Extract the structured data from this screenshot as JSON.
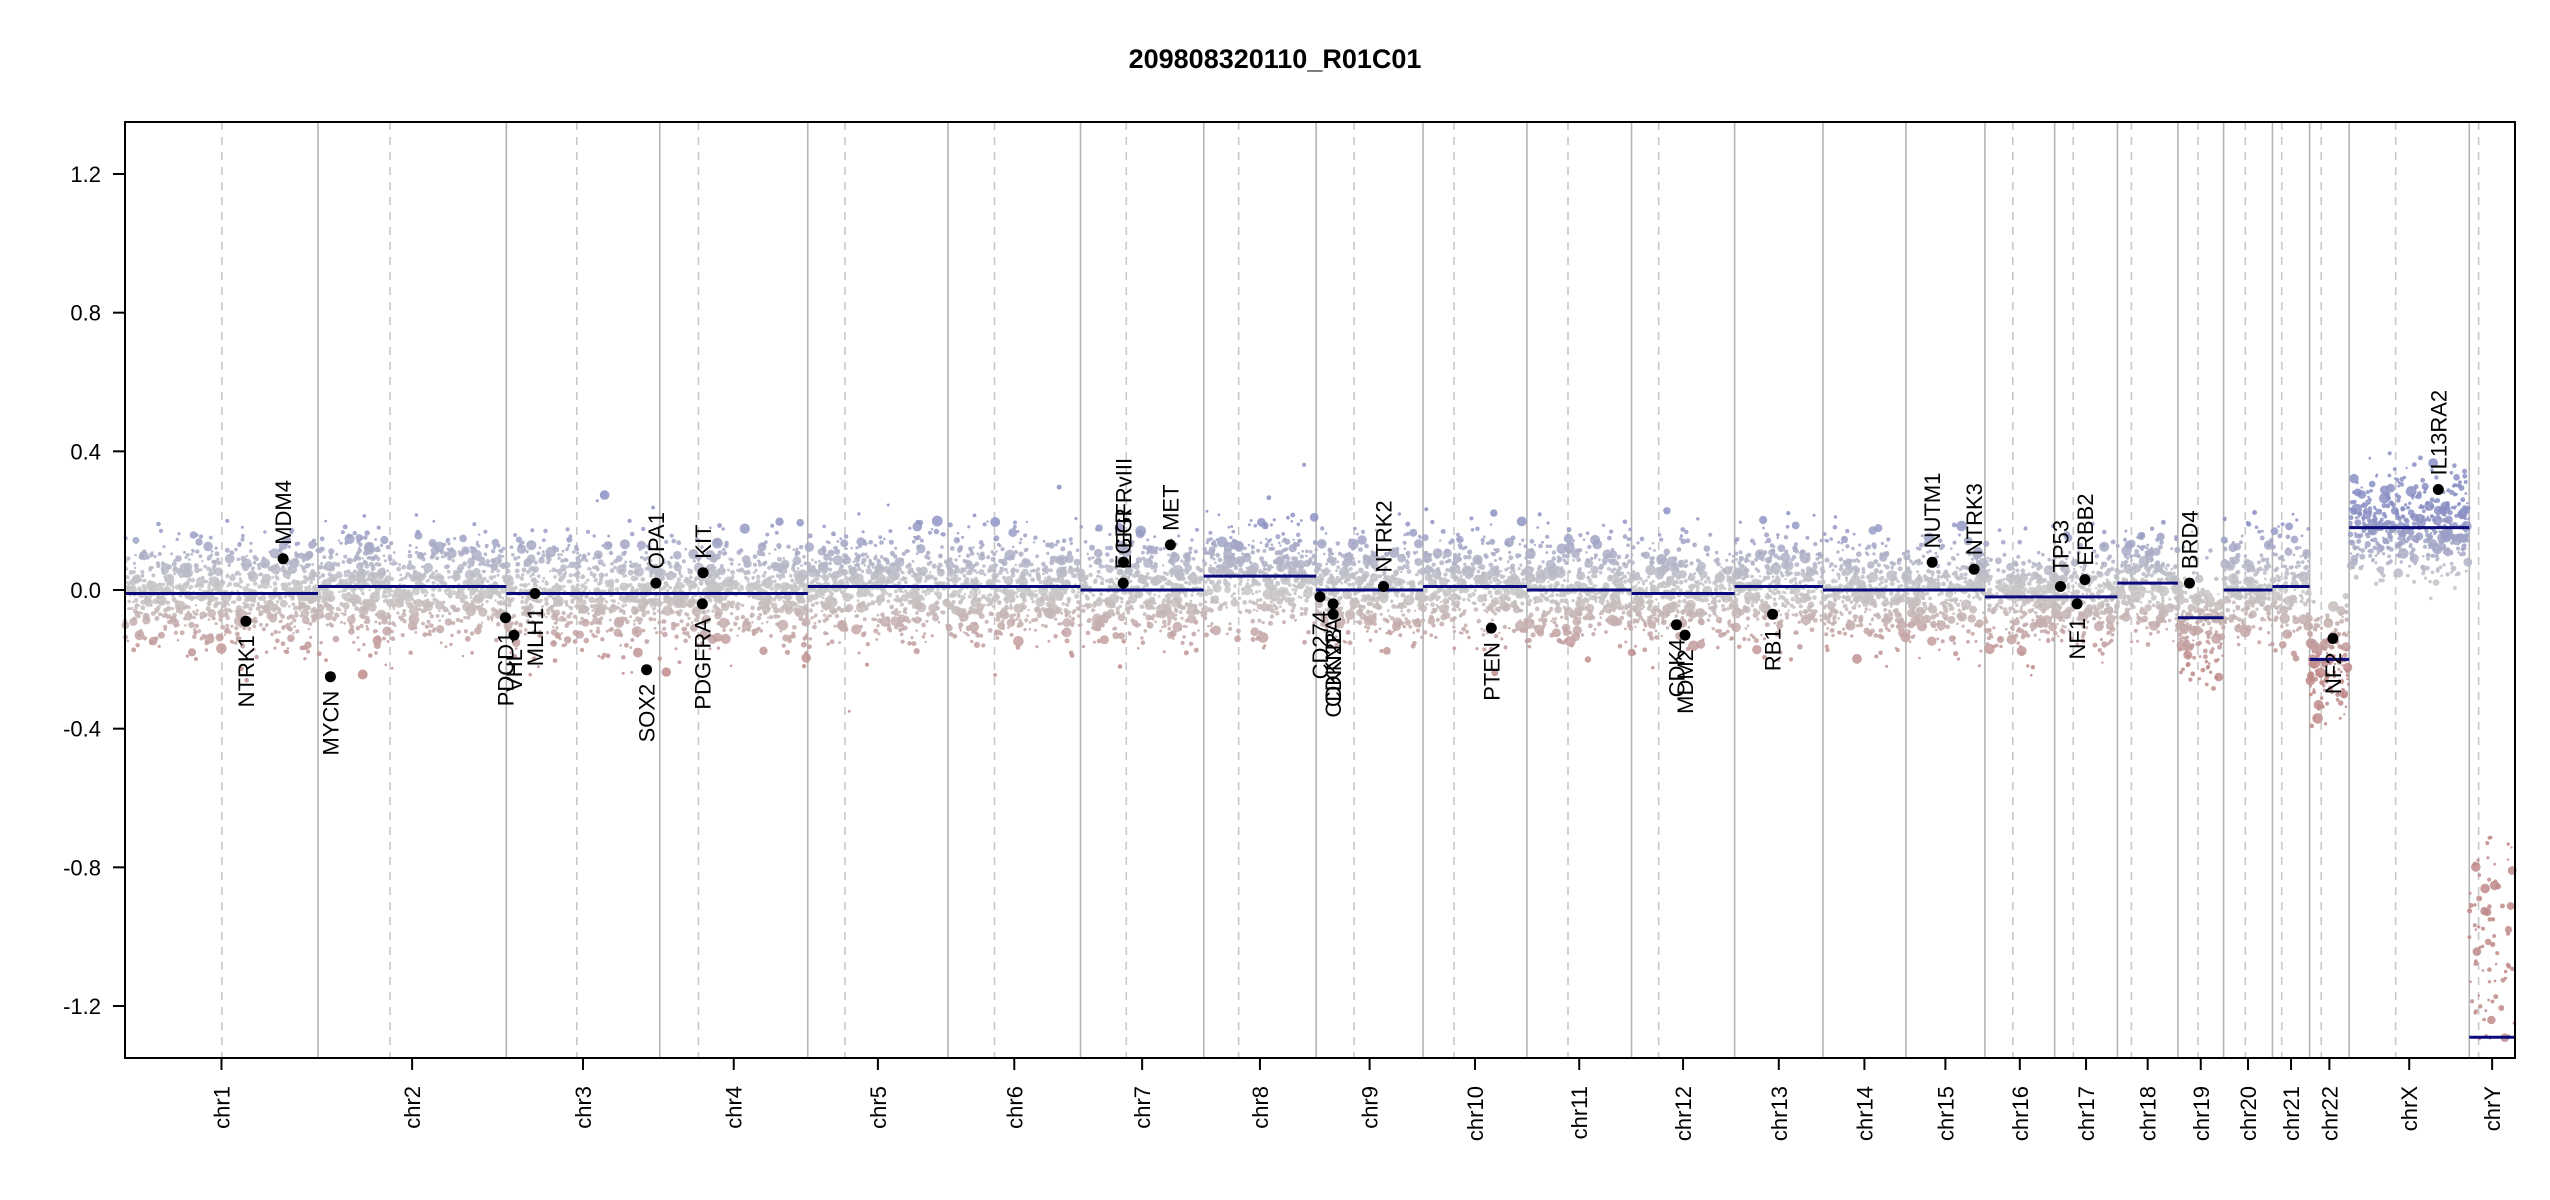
{
  "chart_data": {
    "type": "scatter",
    "title": "209808320110_R01C01",
    "xlabel": "",
    "ylabel": "",
    "ylim": [
      -1.35,
      1.35
    ],
    "yticks": [
      -1.2,
      -0.8,
      -0.4,
      0.0,
      0.4,
      0.8,
      1.2
    ],
    "ytick_labels": [
      "-1.2",
      "-0.8",
      "-0.4",
      "0.0",
      "0.4",
      "0.8",
      "1.2"
    ],
    "grid": false,
    "colors": {
      "gain": "#8a8fc4",
      "neutral": "#c8c8c8",
      "loss": "#c08a8a",
      "segment": "#0a0a7a",
      "segment_alt": "#c81e1e",
      "chrom_boundary": "#b4b4b4",
      "centromere": "#c8c8c8",
      "gene_point": "#000000"
    },
    "chromosomes": [
      {
        "name": "chr1",
        "length": 249,
        "centromere": 125,
        "segments": [
          {
            "start": 0,
            "end": 249,
            "value": -0.01
          }
        ],
        "noise_mean": -0.01
      },
      {
        "name": "chr2",
        "length": 243,
        "centromere": 93,
        "segments": [
          {
            "start": 0,
            "end": 243,
            "value": 0.01
          }
        ],
        "noise_mean": 0.01
      },
      {
        "name": "chr3",
        "length": 198,
        "centromere": 91,
        "segments": [
          {
            "start": 0,
            "end": 198,
            "value": -0.01
          }
        ],
        "noise_mean": -0.01
      },
      {
        "name": "chr4",
        "length": 191,
        "centromere": 50,
        "segments": [
          {
            "start": 0,
            "end": 191,
            "value": -0.01
          }
        ],
        "noise_mean": -0.01
      },
      {
        "name": "chr5",
        "length": 181,
        "centromere": 48,
        "segments": [
          {
            "start": 0,
            "end": 181,
            "value": 0.01
          }
        ],
        "noise_mean": 0.01
      },
      {
        "name": "chr6",
        "length": 171,
        "centromere": 60,
        "segments": [
          {
            "start": 0,
            "end": 171,
            "value": 0.01
          }
        ],
        "noise_mean": 0.01
      },
      {
        "name": "chr7",
        "length": 159,
        "centromere": 59,
        "segments": [
          {
            "start": 0,
            "end": 159,
            "value": 0.0
          }
        ],
        "noise_mean": 0.0
      },
      {
        "name": "chr8",
        "length": 145,
        "centromere": 45,
        "segments": [
          {
            "start": 0,
            "end": 145,
            "value": 0.04
          }
        ],
        "noise_mean": 0.04
      },
      {
        "name": "chr9",
        "length": 138,
        "centromere": 49,
        "segments": [
          {
            "start": 0,
            "end": 138,
            "value": 0.0
          }
        ],
        "noise_mean": 0.0
      },
      {
        "name": "chr10",
        "length": 134,
        "centromere": 40,
        "segments": [
          {
            "start": 0,
            "end": 134,
            "value": 0.01
          }
        ],
        "noise_mean": 0.01
      },
      {
        "name": "chr11",
        "length": 135,
        "centromere": 53,
        "segments": [
          {
            "start": 0,
            "end": 135,
            "value": 0.0
          }
        ],
        "noise_mean": 0.0
      },
      {
        "name": "chr12",
        "length": 133,
        "centromere": 35,
        "segments": [
          {
            "start": 0,
            "end": 133,
            "value": -0.01
          }
        ],
        "noise_mean": -0.01
      },
      {
        "name": "chr13",
        "length": 114,
        "centromere": 0,
        "segments": [
          {
            "start": 0,
            "end": 114,
            "value": 0.01
          }
        ],
        "noise_mean": 0.01
      },
      {
        "name": "chr14",
        "length": 107,
        "centromere": 0,
        "segments": [
          {
            "start": 0,
            "end": 107,
            "value": 0.0
          }
        ],
        "noise_mean": 0.0
      },
      {
        "name": "chr15",
        "length": 102,
        "centromere": 0,
        "segments": [
          {
            "start": 0,
            "end": 102,
            "value": 0.0
          }
        ],
        "noise_mean": 0.0
      },
      {
        "name": "chr16",
        "length": 90,
        "centromere": 36,
        "segments": [
          {
            "start": 0,
            "end": 90,
            "value": -0.02
          }
        ],
        "noise_mean": -0.02
      },
      {
        "name": "chr17",
        "length": 81,
        "centromere": 24,
        "segments": [
          {
            "start": 0,
            "end": 81,
            "value": -0.02
          }
        ],
        "noise_mean": -0.02
      },
      {
        "name": "chr18",
        "length": 78,
        "centromere": 18,
        "segments": [
          {
            "start": 0,
            "end": 78,
            "value": 0.02
          }
        ],
        "noise_mean": 0.02
      },
      {
        "name": "chr19",
        "length": 59,
        "centromere": 26,
        "segments": [
          {
            "start": 0,
            "end": 59,
            "value": -0.08
          }
        ],
        "noise_mean": -0.08
      },
      {
        "name": "chr20",
        "length": 63,
        "centromere": 28,
        "segments": [
          {
            "start": 0,
            "end": 63,
            "value": 0.0
          }
        ],
        "noise_mean": 0.0
      },
      {
        "name": "chr21",
        "length": 48,
        "centromere": 12,
        "segments": [
          {
            "start": 0,
            "end": 48,
            "value": 0.01
          }
        ],
        "noise_mean": 0.01
      },
      {
        "name": "chr22",
        "length": 51,
        "centromere": 15,
        "segments": [
          {
            "start": 0,
            "end": 51,
            "value": -0.2
          }
        ],
        "noise_mean": -0.2
      },
      {
        "name": "chrX",
        "length": 155,
        "centromere": 60,
        "segments": [
          {
            "start": 0,
            "end": 155,
            "value": 0.18
          }
        ],
        "noise_mean": 0.18
      },
      {
        "name": "chrY",
        "length": 59,
        "centromere": 12,
        "segments": [
          {
            "start": 0,
            "end": 59,
            "value": -1.29
          }
        ],
        "noise_mean": -1.29
      }
    ],
    "genes": [
      {
        "name": "NTRK1",
        "chrom": "chr1",
        "pos": 156,
        "value": -0.09
      },
      {
        "name": "MDM4",
        "chrom": "chr1",
        "pos": 204,
        "value": 0.09
      },
      {
        "name": "MYCN",
        "chrom": "chr2",
        "pos": 16,
        "value": -0.25
      },
      {
        "name": "PDCD1",
        "chrom": "chr2",
        "pos": 242,
        "value": -0.08
      },
      {
        "name": "VHL",
        "chrom": "chr3",
        "pos": 10,
        "value": -0.13
      },
      {
        "name": "MLH1",
        "chrom": "chr3",
        "pos": 37,
        "value": -0.01
      },
      {
        "name": "SOX2",
        "chrom": "chr3",
        "pos": 181,
        "value": -0.23
      },
      {
        "name": "OPA1",
        "chrom": "chr3",
        "pos": 193,
        "value": 0.02
      },
      {
        "name": "PDGFRA",
        "chrom": "chr4",
        "pos": 55,
        "value": -0.04
      },
      {
        "name": "KIT",
        "chrom": "chr4",
        "pos": 56,
        "value": 0.05
      },
      {
        "name": "EGFR",
        "chrom": "chr7",
        "pos": 55,
        "value": 0.02
      },
      {
        "name": "EGFRvIII",
        "chrom": "chr7",
        "pos": 55.5,
        "value": 0.08
      },
      {
        "name": "MET",
        "chrom": "chr7",
        "pos": 116,
        "value": 0.13
      },
      {
        "name": "CD274",
        "chrom": "chr9",
        "pos": 5,
        "value": -0.02
      },
      {
        "name": "CDKN2A",
        "chrom": "chr9",
        "pos": 21.9,
        "value": -0.04
      },
      {
        "name": "CDKN2B",
        "chrom": "chr9",
        "pos": 22.0,
        "value": -0.07
      },
      {
        "name": "NTRK2",
        "chrom": "chr9",
        "pos": 87,
        "value": 0.01
      },
      {
        "name": "PTEN",
        "chrom": "chr10",
        "pos": 88,
        "value": -0.11
      },
      {
        "name": "CDK4",
        "chrom": "chr12",
        "pos": 58,
        "value": -0.1
      },
      {
        "name": "MDM2",
        "chrom": "chr12",
        "pos": 69,
        "value": -0.13
      },
      {
        "name": "RB1",
        "chrom": "chr13",
        "pos": 49,
        "value": -0.07
      },
      {
        "name": "NUTM1",
        "chrom": "chr15",
        "pos": 34,
        "value": 0.08
      },
      {
        "name": "NTRK3",
        "chrom": "chr15",
        "pos": 88,
        "value": 0.06
      },
      {
        "name": "TP53",
        "chrom": "chr17",
        "pos": 7.5,
        "value": 0.01
      },
      {
        "name": "NF1",
        "chrom": "chr17",
        "pos": 29,
        "value": -0.04
      },
      {
        "name": "ERBB2",
        "chrom": "chr17",
        "pos": 39,
        "value": 0.03
      },
      {
        "name": "BRD4",
        "chrom": "chr19",
        "pos": 15,
        "value": 0.02
      },
      {
        "name": "NF2",
        "chrom": "chr22",
        "pos": 30,
        "value": -0.14
      },
      {
        "name": "IL13RA2",
        "chrom": "chrX",
        "pos": 115,
        "value": 0.29
      }
    ]
  }
}
